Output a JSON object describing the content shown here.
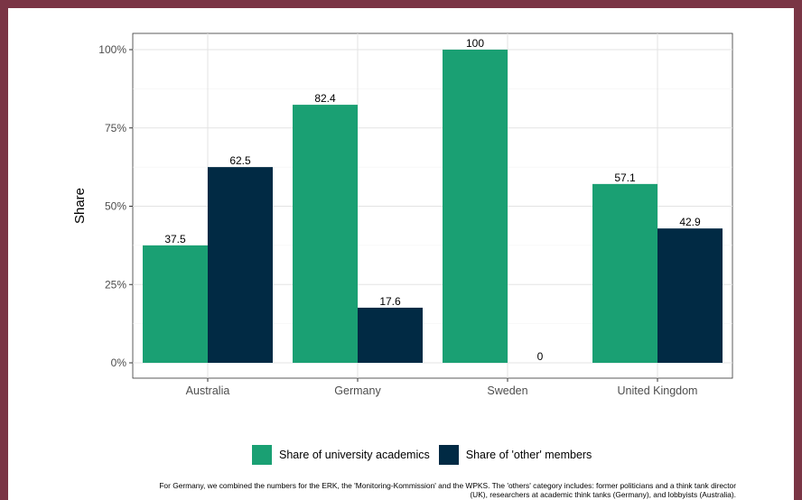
{
  "colors": {
    "academics": "#1aa073",
    "others": "#012a44",
    "frame": "#7a3545"
  },
  "chart_data": {
    "type": "bar",
    "categories": [
      "Australia",
      "Germany",
      "Sweden",
      "United Kingdom"
    ],
    "series": [
      {
        "name": "Share of university academics",
        "values": [
          37.5,
          82.4,
          100,
          57.1
        ]
      },
      {
        "name": "Share of 'other' members",
        "values": [
          62.5,
          17.6,
          0,
          42.9
        ]
      }
    ],
    "value_labels": [
      [
        "37.5",
        "82.4",
        "100",
        "57.1"
      ],
      [
        "62.5",
        "17.6",
        "0",
        "42.9"
      ]
    ],
    "ylabel": "Share",
    "ylim": [
      0,
      100
    ],
    "yticks": [
      0,
      25,
      50,
      75,
      100
    ],
    "ytick_labels": [
      "0%",
      "25%",
      "50%",
      "75%",
      "100%"
    ],
    "grid": true,
    "legend_position": "bottom"
  },
  "footnote": "For Germany, we combined the numbers for the ERK, the 'Monitoring-Kommission' and the WPKS. The 'others' category includes: former politicians and a think tank director (UK), researchers at academic think tanks (Germany), and lobbyists (Australia)."
}
